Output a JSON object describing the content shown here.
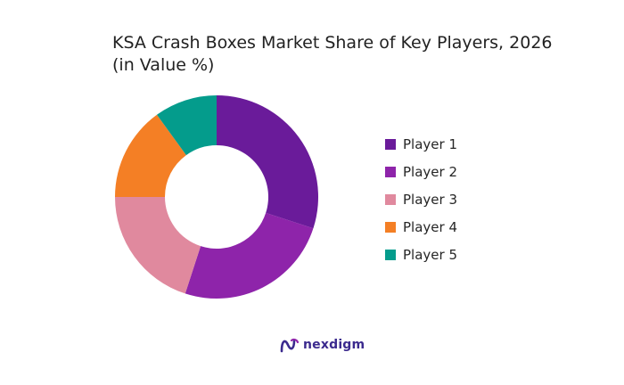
{
  "chart_data": {
    "type": "pie",
    "title": "KSA Crash Boxes Market Share of Key Players, 2026\n(in Value %)",
    "categories": [
      "Player 1",
      "Player 2",
      "Player 3",
      "Player 4",
      "Player 5"
    ],
    "values": [
      30,
      25,
      20,
      15,
      10
    ],
    "colors": [
      "#6a1b9a",
      "#8e24aa",
      "#e0899e",
      "#f47f25",
      "#049c8c"
    ],
    "donut": true,
    "legend": "right"
  },
  "brand": {
    "name": "nexdigm",
    "logo_icon": "nexdigm-logo-icon"
  }
}
